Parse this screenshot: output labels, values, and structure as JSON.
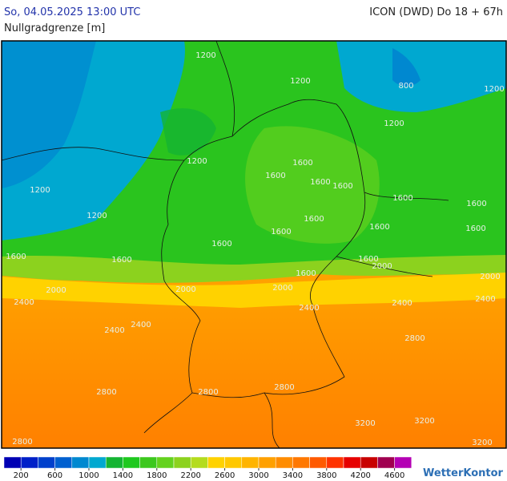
{
  "header": {
    "datetime": "So, 04.05.2025 13:00 UTC",
    "parameter": "Nullgradgrenze [m]",
    "model": "ICON (DWD) Do 18 + 67h"
  },
  "map": {
    "contour_labels": [
      1200,
      1200,
      800,
      1200,
      1200,
      1200,
      1200,
      1200,
      1600,
      1600,
      1600,
      1600,
      1600,
      1600,
      1600,
      1600,
      1600,
      1600,
      1600,
      1600,
      1600,
      1600,
      1600,
      2000,
      2000,
      2000,
      2000,
      2000,
      2400,
      2400,
      2400,
      2400,
      2400,
      2400,
      2800,
      2800,
      2800,
      2800,
      2800,
      3200,
      3200,
      3200
    ]
  },
  "legend": {
    "ticks": [
      200,
      600,
      1000,
      1400,
      1800,
      2200,
      2600,
      3000,
      3400,
      3800,
      4200,
      4600
    ],
    "colors": [
      "#0000b4",
      "#0020c8",
      "#0040cc",
      "#0060d0",
      "#0088d0",
      "#00a8d0",
      "#14b432",
      "#1ec81e",
      "#3cc81e",
      "#64d21e",
      "#8cd21e",
      "#b4dc1e",
      "#ffd200",
      "#ffc800",
      "#ffb400",
      "#ffa000",
      "#ff8c00",
      "#ff7800",
      "#ff5a00",
      "#ff3200",
      "#e60000",
      "#c80000",
      "#a00050",
      "#b400b4"
    ]
  },
  "brand": "WetterKontor"
}
